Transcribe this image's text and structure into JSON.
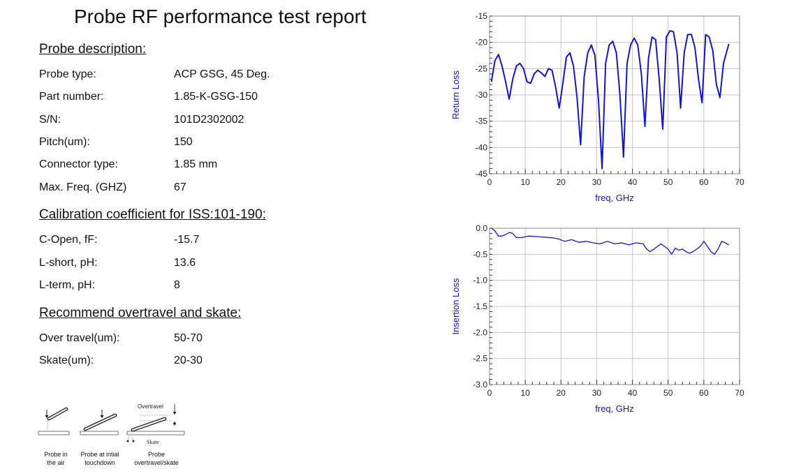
{
  "report": {
    "title": "Probe RF performance test report",
    "probe_description": {
      "heading": "Probe description:",
      "rows": [
        {
          "label": "Probe type:",
          "value": "ACP GSG, 45 Deg."
        },
        {
          "label": "Part number:",
          "value": "1.85-K-GSG-150"
        },
        {
          "label": "S/N:",
          "value": "101D2302002"
        },
        {
          "label": "Pitch(um):",
          "value": "150"
        },
        {
          "label": "Connector type:",
          "value": "1.85 mm"
        },
        {
          "label": "Max. Freq. (GHZ)",
          "value": "67"
        }
      ]
    },
    "calibration": {
      "heading": "Calibration coefficient for ISS:101-190:",
      "rows": [
        {
          "label": "C-Open, fF:",
          "value": "-15.7"
        },
        {
          "label": "L-short, pH:",
          "value": "13.6"
        },
        {
          "label": "L-term, pH:",
          "value": "8"
        }
      ]
    },
    "overtravel": {
      "heading": "Recommend overtravel and skate:",
      "rows": [
        {
          "label": "Over travel(um):",
          "value": "50-70"
        },
        {
          "label": "Skate(um):",
          "value": "20-30"
        }
      ]
    }
  },
  "diagram": {
    "captions": [
      [
        "Probe in",
        "the air"
      ],
      [
        "Probe at intial",
        "touchdown"
      ],
      [
        "Probe",
        "overtravel/skate"
      ]
    ],
    "overtravel_label": "Overtravel",
    "skate_label": "Skate"
  },
  "chart_data": [
    {
      "type": "line",
      "xlabel": "freq, GHz",
      "ylabel": "Return Loss",
      "xlim": [
        0,
        70
      ],
      "ylim": [
        -45,
        -15
      ],
      "xticks": [
        "0",
        "10",
        "20",
        "30",
        "40",
        "50",
        "60",
        "70"
      ],
      "yticks": [
        "-15",
        "-20",
        "-25",
        "-30",
        "-35",
        "-40",
        "-45"
      ],
      "grid": true,
      "color": "#1414cc",
      "series": [
        {
          "x": [
            0.5,
            1.5,
            2.5,
            3.5,
            4.5,
            5.5,
            6.5,
            7.5,
            8.5,
            9.5,
            10.5,
            11.5,
            12.5,
            13.5,
            14.5,
            15.5,
            16.5,
            17.5,
            18.5,
            19.5,
            20.5,
            21.5,
            22.5,
            23.5,
            24.5,
            25.5,
            26.5,
            27.5,
            28.5,
            29.5,
            30.5,
            31.5,
            32.5,
            33.5,
            34.5,
            35.5,
            36.5,
            37.5,
            38.5,
            39.5,
            40.5,
            41.5,
            42.5,
            43.5,
            44.5,
            45.5,
            46.5,
            47.5,
            48.5,
            49.5,
            50.5,
            51.5,
            52.5,
            53.5,
            54.5,
            55.5,
            56.5,
            57.5,
            58.5,
            59.5,
            60.5,
            61.5,
            62.5,
            63.5,
            64.5,
            65.5,
            66.5,
            67
          ],
          "y": [
            -27.5,
            -23.5,
            -22.3,
            -24.5,
            -27.5,
            -30.8,
            -27.0,
            -24.5,
            -24.0,
            -25.0,
            -27.5,
            -27.8,
            -26.0,
            -25.3,
            -25.8,
            -26.5,
            -25.0,
            -25.3,
            -28.5,
            -32.5,
            -28.0,
            -22.8,
            -22.0,
            -24.5,
            -30.5,
            -39.5,
            -26.5,
            -22.0,
            -20.5,
            -22.5,
            -31.0,
            -44.0,
            -24.0,
            -20.5,
            -19.8,
            -22.0,
            -30.0,
            -41.8,
            -24.0,
            -20.5,
            -19.2,
            -20.5,
            -26.0,
            -36.0,
            -23.0,
            -19.0,
            -19.5,
            -27.0,
            -36.5,
            -19.0,
            -17.8,
            -18.0,
            -22.0,
            -32.5,
            -22.0,
            -18.5,
            -18.5,
            -21.0,
            -27.0,
            -31.5,
            -18.5,
            -19.0,
            -21.5,
            -28.0,
            -30.5,
            -24.0,
            -21.5,
            -20.3
          ]
        }
      ]
    },
    {
      "type": "line",
      "xlabel": "freq, GHz",
      "ylabel": "Insertion Loss",
      "xlim": [
        0,
        70
      ],
      "ylim": [
        -3.0,
        0.0
      ],
      "xticks": [
        "0",
        "10",
        "20",
        "30",
        "40",
        "50",
        "60",
        "70"
      ],
      "yticks": [
        "0.0",
        "-0.5",
        "-1.0",
        "-1.5",
        "-2.0",
        "-2.5",
        "-3.0"
      ],
      "grid": true,
      "color": "#1414cc",
      "series": [
        {
          "x": [
            0.5,
            1.5,
            2.5,
            3.5,
            4.5,
            5.5,
            6.5,
            7.5,
            9,
            11,
            13,
            15,
            17,
            19,
            21,
            23,
            25,
            27,
            29,
            31,
            33,
            35,
            37,
            39,
            41,
            43,
            44,
            45,
            46,
            47,
            48,
            49,
            50,
            51,
            52,
            53,
            54,
            55,
            56,
            57,
            58,
            59,
            60,
            61,
            62,
            63,
            64,
            65,
            66,
            67
          ],
          "y": [
            0.0,
            -0.05,
            -0.15,
            -0.15,
            -0.12,
            -0.08,
            -0.1,
            -0.18,
            -0.18,
            -0.15,
            -0.16,
            -0.17,
            -0.18,
            -0.2,
            -0.25,
            -0.22,
            -0.27,
            -0.25,
            -0.28,
            -0.3,
            -0.25,
            -0.3,
            -0.28,
            -0.32,
            -0.28,
            -0.3,
            -0.4,
            -0.45,
            -0.4,
            -0.35,
            -0.3,
            -0.35,
            -0.4,
            -0.5,
            -0.38,
            -0.42,
            -0.4,
            -0.45,
            -0.48,
            -0.45,
            -0.4,
            -0.35,
            -0.25,
            -0.35,
            -0.45,
            -0.5,
            -0.4,
            -0.25,
            -0.28,
            -0.32
          ]
        }
      ]
    }
  ]
}
